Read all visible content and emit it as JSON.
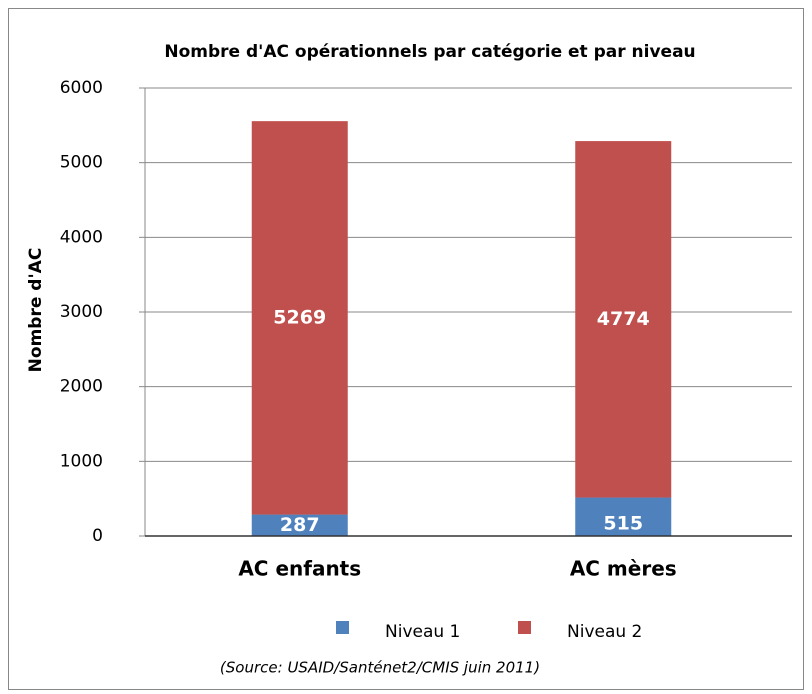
{
  "chart_data": {
    "type": "bar",
    "stacked": true,
    "title": "Nombre d'AC opérationnels par catégorie et par niveau",
    "ylabel": "Nombre d'AC",
    "note": "(Source: USAID/Santénet2/CMIS  juin 2011)",
    "categories": [
      "AC enfants",
      "AC mères"
    ],
    "series": [
      {
        "name": "Niveau 1",
        "color": "#4f81bd",
        "values": [
          287,
          515
        ]
      },
      {
        "name": "Niveau 2",
        "color": "#c0504d",
        "values": [
          5269,
          4774
        ]
      }
    ],
    "ylim": [
      0,
      6000
    ],
    "yticks": [
      0,
      1000,
      2000,
      3000,
      4000,
      5000,
      6000
    ],
    "grid": true,
    "legend": "bottom"
  }
}
